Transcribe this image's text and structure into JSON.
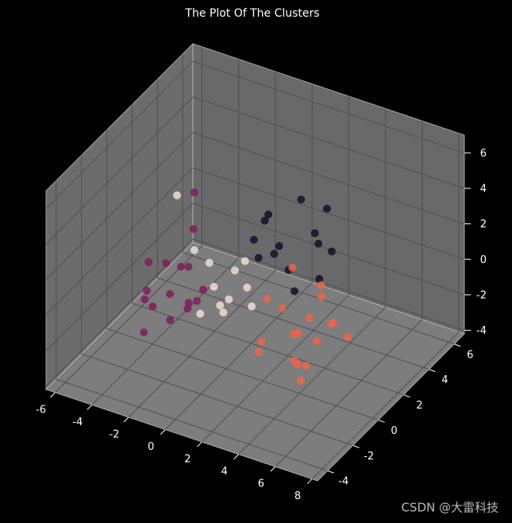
{
  "chart_data": {
    "type": "scatter3d",
    "title": "The Plot Of The Clusters",
    "xlim": [
      -6.5,
      8.3
    ],
    "ylim": [
      -4.8,
      6.8
    ],
    "zlim": [
      -4.2,
      7.0
    ],
    "xticks": [
      -6,
      -4,
      -2,
      0,
      2,
      4,
      6,
      8
    ],
    "yticks": [
      -4,
      -2,
      0,
      2,
      4,
      6
    ],
    "zticks": [
      -4,
      -2,
      0,
      2,
      4,
      6
    ],
    "grid": true,
    "series": [
      {
        "color": "#15112a",
        "x": [
          0.2,
          -0.8,
          1.2,
          0.5,
          2.0,
          -0.3,
          1.5,
          0.9,
          2.6,
          -1.2,
          0.0,
          1.8,
          3.0,
          0.7
        ],
        "y": [
          3.9,
          4.5,
          3.2,
          5.2,
          4.4,
          3.0,
          5.8,
          2.5,
          3.6,
          4.8,
          2.2,
          2.8,
          4.0,
          6.0
        ],
        "z": [
          0.0,
          1.0,
          -0.5,
          1.8,
          0.4,
          -0.2,
          1.2,
          0.8,
          -0.8,
          0.3,
          1.5,
          -1.2,
          0.6,
          -0.6
        ]
      },
      {
        "color": "#eddcd2",
        "x": [
          -0.8,
          -1.6,
          0.2,
          -0.4,
          0.8,
          -1.2,
          0.0,
          -2.0,
          0.5,
          -0.9,
          1.4,
          -3.5
        ],
        "y": [
          0.2,
          1.0,
          -0.5,
          0.8,
          0.5,
          -0.3,
          1.5,
          0.4,
          -1.2,
          2.0,
          0.0,
          1.2
        ],
        "z": [
          0.0,
          0.5,
          -0.6,
          -1.0,
          0.3,
          -1.3,
          0.8,
          1.5,
          0.4,
          -0.4,
          -0.2,
          3.5
        ]
      },
      {
        "color": "#7e1d5e",
        "x": [
          -2.3,
          -3.0,
          -1.8,
          -2.6,
          -1.5,
          -3.4,
          -2.0,
          -2.8,
          -1.2,
          -2.4,
          -3.6,
          -1.9,
          -2.2,
          -0.9,
          -2.7,
          -3.1
        ],
        "y": [
          -1.1,
          -0.4,
          -1.8,
          0.2,
          -0.8,
          -1.5,
          0.6,
          -2.2,
          -1.3,
          0.9,
          -0.9,
          -0.2,
          -2.6,
          -0.5,
          1.4,
          -2.0
        ],
        "z": [
          0.0,
          1.0,
          -0.8,
          0.5,
          1.6,
          -0.4,
          -1.5,
          0.8,
          -0.3,
          2.2,
          1.2,
          -1.0,
          0.4,
          0.3,
          3.8,
          -1.8
        ]
      },
      {
        "color": "#ee6446",
        "x": [
          4.4,
          3.2,
          5.6,
          4.0,
          6.1,
          2.8,
          5.0,
          3.6,
          4.8,
          5.9,
          3.0,
          4.2,
          6.5,
          2.5,
          4.9,
          3.8,
          5.3,
          4.6
        ],
        "y": [
          -1.0,
          -0.2,
          -1.8,
          0.8,
          -0.5,
          -1.5,
          0.3,
          -2.4,
          1.5,
          -2.9,
          0.9,
          -0.7,
          0.2,
          -0.4,
          -1.2,
          2.0,
          -2.0,
          0.5
        ],
        "z": [
          0.0,
          0.5,
          -0.8,
          -0.5,
          0.8,
          -1.2,
          1.4,
          0.3,
          -1.0,
          0.2,
          1.9,
          -1.8,
          -0.3,
          0.9,
          -2.3,
          0.4,
          1.1,
          -1.4
        ]
      }
    ]
  },
  "watermark": "CSDN @大雷科技"
}
